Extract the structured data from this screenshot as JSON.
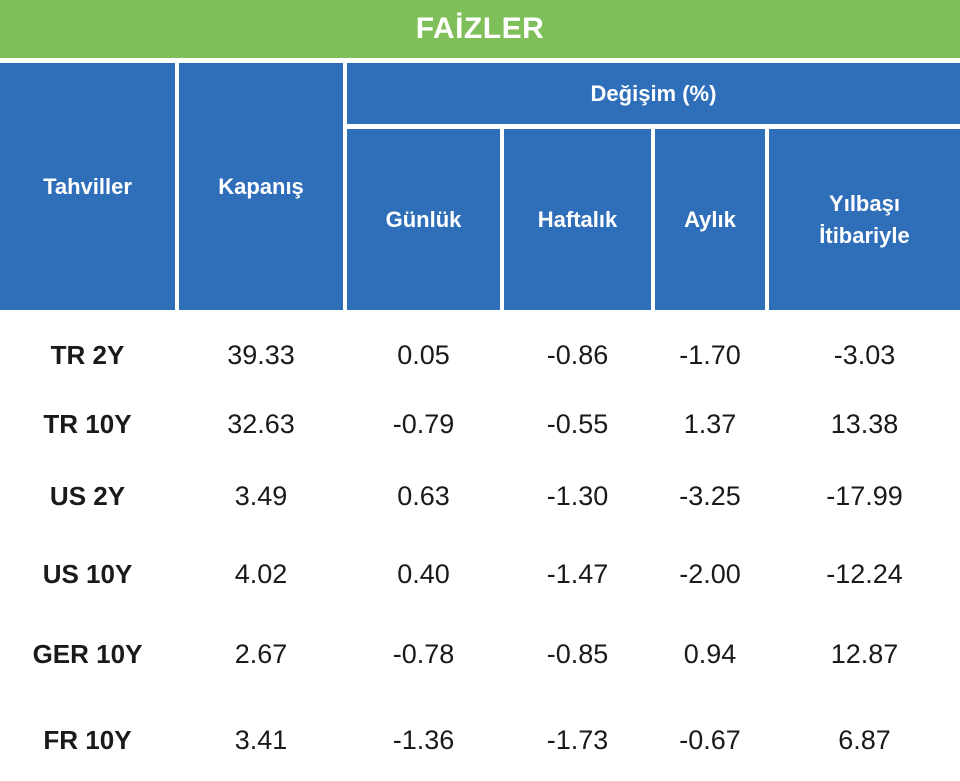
{
  "title": "FAİZLER",
  "headers": {
    "bonds": "Tahviller",
    "close": "Kapanış",
    "change_group": "Değişim (%)",
    "daily": "Günlük",
    "weekly": "Haftalık",
    "monthly": "Aylık",
    "ytd_line1": "Yılbaşı",
    "ytd_line2": "İtibariyle"
  },
  "rows": [
    {
      "name": "TR 2Y",
      "close": "39.33",
      "daily": "0.05",
      "weekly": "-0.86",
      "monthly": "-1.70",
      "ytd": "-3.03"
    },
    {
      "name": "TR 10Y",
      "close": "32.63",
      "daily": "-0.79",
      "weekly": "-0.55",
      "monthly": "1.37",
      "ytd": "13.38"
    },
    {
      "name": "US 2Y",
      "close": "3.49",
      "daily": "0.63",
      "weekly": "-1.30",
      "monthly": "-3.25",
      "ytd": "-17.99"
    },
    {
      "name": "US 10Y",
      "close": "4.02",
      "daily": "0.40",
      "weekly": "-1.47",
      "monthly": "-2.00",
      "ytd": "-12.24"
    },
    {
      "name": "GER 10Y",
      "close": "2.67",
      "daily": "-0.78",
      "weekly": "-0.85",
      "monthly": "0.94",
      "ytd": "12.87"
    },
    {
      "name": "FR 10Y",
      "close": "3.41",
      "daily": "-1.36",
      "weekly": "-1.73",
      "monthly": "-0.67",
      "ytd": "6.87"
    }
  ],
  "colors": {
    "title_bg": "#7fbf5a",
    "header_bg": "#2f6eb9",
    "header_text": "#ffffff",
    "body_text": "#1a1a1a"
  }
}
